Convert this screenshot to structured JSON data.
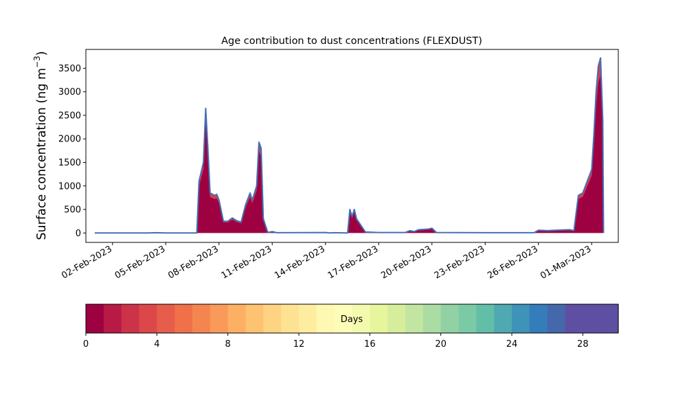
{
  "chart_data": {
    "type": "area",
    "title": "Age contribution to dust concentrations (FLEXDUST)",
    "xlabel": "",
    "ylabel": "Surface concentration (ng m",
    "ylabel_superscript": "−3",
    "ylabel_close": ")",
    "xlim": [
      "2023-01-31T12:00",
      "2023-03-02T12:00"
    ],
    "ylim": [
      -200,
      3900
    ],
    "y_ticks": [
      0,
      500,
      1000,
      1500,
      2000,
      2500,
      3000,
      3500
    ],
    "x_tick_dates": [
      "2023-02-02",
      "2023-02-05",
      "2023-02-08",
      "2023-02-11",
      "2023-02-14",
      "2023-02-17",
      "2023-02-20",
      "2023-02-23",
      "2023-02-26",
      "2023-03-01"
    ],
    "x_tick_labels": [
      "02-Feb-2023",
      "05-Feb-2023",
      "08-Feb-2023",
      "11-Feb-2023",
      "14-Feb-2023",
      "17-Feb-2023",
      "20-Feb-2023",
      "23-Feb-2023",
      "26-Feb-2023",
      "01-Mar-2023"
    ],
    "grid": false,
    "series_note": "stacked by particle age; the 0-1 day bin dominates, the total is outlined in blue",
    "total": [
      [
        "2023-02-01T00:00",
        0
      ],
      [
        "2023-02-04T00:00",
        0
      ],
      [
        "2023-02-04T12:00",
        5
      ],
      [
        "2023-02-05T00:00",
        0
      ],
      [
        "2023-02-06T18:00",
        0
      ],
      [
        "2023-02-06T21:00",
        1100
      ],
      [
        "2023-02-07T03:00",
        1500
      ],
      [
        "2023-02-07T06:00",
        2650
      ],
      [
        "2023-02-07T09:00",
        1800
      ],
      [
        "2023-02-07T12:00",
        850
      ],
      [
        "2023-02-07T18:00",
        800
      ],
      [
        "2023-02-07T21:00",
        820
      ],
      [
        "2023-02-08T00:00",
        700
      ],
      [
        "2023-02-08T06:00",
        250
      ],
      [
        "2023-02-08T12:00",
        250
      ],
      [
        "2023-02-08T18:00",
        320
      ],
      [
        "2023-02-09T00:00",
        260
      ],
      [
        "2023-02-09T06:00",
        230
      ],
      [
        "2023-02-09T12:00",
        600
      ],
      [
        "2023-02-09T18:00",
        850
      ],
      [
        "2023-02-09T21:00",
        700
      ],
      [
        "2023-02-10T03:00",
        1000
      ],
      [
        "2023-02-10T06:00",
        1930
      ],
      [
        "2023-02-10T09:00",
        1800
      ],
      [
        "2023-02-10T12:00",
        300
      ],
      [
        "2023-02-10T18:00",
        10
      ],
      [
        "2023-02-11T00:00",
        30
      ],
      [
        "2023-02-11T06:00",
        5
      ],
      [
        "2023-02-14T00:00",
        10
      ],
      [
        "2023-02-14T06:00",
        0
      ],
      [
        "2023-02-14T12:00",
        5
      ],
      [
        "2023-02-15T06:00",
        0
      ],
      [
        "2023-02-15T09:00",
        500
      ],
      [
        "2023-02-15T12:00",
        350
      ],
      [
        "2023-02-15T15:00",
        500
      ],
      [
        "2023-02-15T18:00",
        300
      ],
      [
        "2023-02-16T06:00",
        20
      ],
      [
        "2023-02-17T00:00",
        10
      ],
      [
        "2023-02-18T12:00",
        10
      ],
      [
        "2023-02-18T18:00",
        50
      ],
      [
        "2023-02-19T00:00",
        30
      ],
      [
        "2023-02-19T06:00",
        70
      ],
      [
        "2023-02-19T18:00",
        80
      ],
      [
        "2023-02-20T00:00",
        100
      ],
      [
        "2023-02-20T06:00",
        10
      ],
      [
        "2023-02-23T00:00",
        5
      ],
      [
        "2023-02-25T18:00",
        5
      ],
      [
        "2023-02-26T00:00",
        60
      ],
      [
        "2023-02-26T12:00",
        50
      ],
      [
        "2023-02-27T00:00",
        60
      ],
      [
        "2023-02-27T18:00",
        70
      ],
      [
        "2023-02-28T00:00",
        50
      ],
      [
        "2023-02-28T06:00",
        800
      ],
      [
        "2023-02-28T12:00",
        850
      ],
      [
        "2023-02-28T18:00",
        1100
      ],
      [
        "2023-03-01T00:00",
        1350
      ],
      [
        "2023-03-01T03:00",
        2100
      ],
      [
        "2023-03-01T06:00",
        3000
      ],
      [
        "2023-03-01T09:00",
        3550
      ],
      [
        "2023-03-01T12:00",
        3720
      ],
      [
        "2023-03-01T15:00",
        2400
      ],
      [
        "2023-03-01T16:00",
        0
      ]
    ],
    "youngest_share": 0.9,
    "colorbar": {
      "label": "Days",
      "min": 0,
      "max": 30,
      "ticks": [
        0,
        4,
        8,
        12,
        16,
        20,
        24,
        28
      ],
      "tick_labels": [
        "0",
        "4",
        "8",
        "12",
        "16",
        "20",
        "24",
        "28"
      ],
      "colors": [
        "#9e0142",
        "#b71a45",
        "#cc3349",
        "#dc484a",
        "#e65d4c",
        "#f0704a",
        "#f5854f",
        "#f99a5a",
        "#fdaf63",
        "#fdc272",
        "#fed382",
        "#fee293",
        "#feeda1",
        "#fff8b3",
        "#fdfcb9",
        "#f4faad",
        "#e7f59c",
        "#d6ee9b",
        "#c2e6a1",
        "#aadca4",
        "#92d1a4",
        "#7acba5",
        "#63bea8",
        "#4fa9b0",
        "#3e93b8",
        "#347cba",
        "#4568ad",
        "#5e4fa2",
        "#5e4fa2",
        "#5e4fa2"
      ]
    },
    "colors": {
      "total_line": "#4470b5",
      "youngest_fill": "#9e0142",
      "second_fill": "#d53e4f"
    }
  }
}
